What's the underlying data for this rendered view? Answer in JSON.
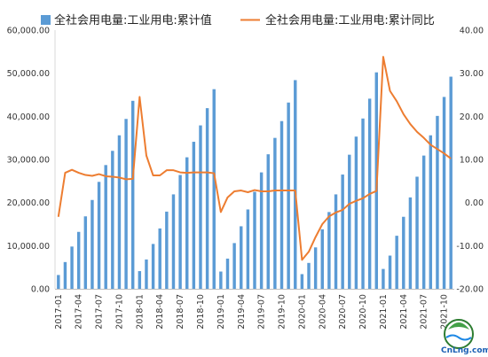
{
  "chart_data": {
    "type": "bar+line",
    "legend": {
      "position": "top",
      "entries": [
        {
          "label": "全社会用电量:工业用电:累计值",
          "kind": "bar",
          "color": "#5b9bd5"
        },
        {
          "label": "全社会用电量:工业用电:累计同比",
          "kind": "line",
          "color": "#ed7d31"
        }
      ]
    },
    "x_tick_labels": [
      "2017-01",
      "2017-04",
      "2017-07",
      "2017-10",
      "2018-01",
      "2018-04",
      "2018-07",
      "2018-10",
      "2019-01",
      "2019-04",
      "2019-07",
      "2019-10",
      "2020-01",
      "2020-04",
      "2020-07",
      "2020-10",
      "2021-01",
      "2021-04",
      "2021-07",
      "2021-10"
    ],
    "y_left": {
      "ylim": [
        0,
        60000
      ],
      "tick_labels": [
        "0.00",
        "10,000.00",
        "20,000.00",
        "30,000.00",
        "40,000.00",
        "50,000.00",
        "60,000.00"
      ]
    },
    "y_right": {
      "ylim": [
        -20,
        40
      ],
      "tick_labels": [
        "-20.00",
        "-10.00",
        "0.00",
        "10.00",
        "20.00",
        "30.00",
        "40.00"
      ]
    },
    "grid": false,
    "series": [
      {
        "name": "全社会用电量:工业用电:累计值",
        "axis": "left",
        "type": "bar",
        "color": "#5b9bd5",
        "periods": [
          {
            "start": "2017-01",
            "values": [
              3200,
              6200,
              9800,
              13200,
              16800,
              20600,
              24800,
              28700,
              32000,
              35600,
              39400,
              43600
            ]
          },
          {
            "start": "2018-01",
            "values": [
              4100,
              6800,
              10400,
              14000,
              17900,
              21900,
              26400,
              30500,
              34100,
              37900,
              41900,
              46300
            ]
          },
          {
            "start": "2019-01",
            "values": [
              4000,
              7000,
              10600,
              14500,
              18400,
              22500,
              27000,
              31200,
              35000,
              38900,
              43200,
              48400
            ]
          },
          {
            "start": "2020-01",
            "values": [
              3400,
              6000,
              9600,
              13800,
              17800,
              21900,
              26500,
              31100,
              35300,
              39500,
              44100,
              50200
            ]
          },
          {
            "start": "2021-01",
            "values": [
              4600,
              7700,
              12300,
              16700,
              21200,
              26000,
              30900,
              35600,
              40100,
              44500,
              49200
            ]
          }
        ]
      },
      {
        "name": "全社会用电量:工业用电:累计同比",
        "axis": "right",
        "type": "line",
        "color": "#ed7d31",
        "start": "2017-01",
        "values": [
          -3.3,
          6.9,
          7.6,
          6.9,
          6.4,
          6.2,
          6.6,
          6.1,
          6.0,
          5.8,
          5.4,
          5.5,
          24.5,
          10.9,
          6.3,
          6.3,
          7.5,
          7.5,
          7.0,
          6.9,
          7.0,
          7.0,
          7.0,
          6.8,
          -2.2,
          1.2,
          2.6,
          2.8,
          2.4,
          2.9,
          2.6,
          2.6,
          2.8,
          2.8,
          2.8,
          2.8,
          -13.3,
          -11.4,
          -8.0,
          -5.0,
          -3.2,
          -2.3,
          -1.7,
          -0.3,
          0.4,
          1.0,
          2.0,
          2.7,
          33.8,
          25.9,
          23.5,
          20.5,
          18.2,
          16.4,
          15.0,
          13.4,
          12.4,
          11.4,
          10.2
        ]
      }
    ]
  },
  "watermark": {
    "text": "CnLng.com"
  }
}
